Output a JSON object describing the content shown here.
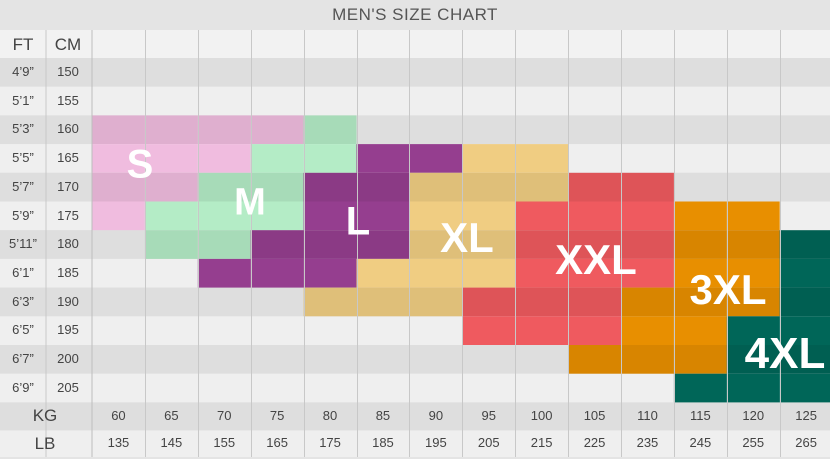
{
  "chart_data": {
    "type": "heatmap",
    "title": "MEN'S SIZE CHART",
    "row_headers": [
      "FT",
      "CM"
    ],
    "col_headers": [
      "KG",
      "LB"
    ],
    "heights_ft": [
      "4’9”",
      "5’1”",
      "5’3”",
      "5’5”",
      "5’7”",
      "5’9”",
      "5’11”",
      "6’1”",
      "6’3”",
      "6’5”",
      "6’7”",
      "6’9”"
    ],
    "heights_cm": [
      "150",
      "155",
      "160",
      "165",
      "170",
      "175",
      "180",
      "185",
      "190",
      "195",
      "200",
      "205"
    ],
    "weights_kg": [
      "60",
      "65",
      "70",
      "75",
      "80",
      "85",
      "90",
      "95",
      "100",
      "105",
      "110",
      "115",
      "120",
      "125"
    ],
    "weights_lb": [
      "135",
      "145",
      "155",
      "165",
      "175",
      "185",
      "195",
      "205",
      "215",
      "225",
      "235",
      "245",
      "255",
      "265"
    ],
    "sizes": [
      {
        "name": "S",
        "color": "#f0bcdf",
        "cells": [
          [
            160,
            60
          ],
          [
            160,
            65
          ],
          [
            160,
            70
          ],
          [
            160,
            75
          ],
          [
            165,
            60
          ],
          [
            165,
            65
          ],
          [
            165,
            70
          ],
          [
            170,
            60
          ],
          [
            170,
            65
          ],
          [
            175,
            60
          ]
        ]
      },
      {
        "name": "M",
        "color": "#b4ecc6",
        "cells": [
          [
            160,
            80
          ],
          [
            165,
            75
          ],
          [
            165,
            80
          ],
          [
            170,
            70
          ],
          [
            170,
            75
          ],
          [
            175,
            65
          ],
          [
            175,
            70
          ],
          [
            175,
            75
          ],
          [
            180,
            65
          ],
          [
            180,
            70
          ]
        ]
      },
      {
        "name": "L",
        "color": "#953e8f",
        "cells": [
          [
            165,
            85
          ],
          [
            165,
            90
          ],
          [
            170,
            80
          ],
          [
            170,
            85
          ],
          [
            175,
            80
          ],
          [
            175,
            85
          ],
          [
            180,
            75
          ],
          [
            180,
            80
          ],
          [
            180,
            85
          ],
          [
            185,
            70
          ],
          [
            185,
            75
          ],
          [
            185,
            80
          ]
        ]
      },
      {
        "name": "XL",
        "color": "#f0cd82",
        "cells": [
          [
            165,
            95
          ],
          [
            165,
            100
          ],
          [
            170,
            90
          ],
          [
            170,
            95
          ],
          [
            170,
            100
          ],
          [
            175,
            90
          ],
          [
            175,
            95
          ],
          [
            180,
            90
          ],
          [
            180,
            95
          ],
          [
            185,
            85
          ],
          [
            185,
            90
          ],
          [
            185,
            95
          ],
          [
            190,
            80
          ],
          [
            190,
            85
          ],
          [
            190,
            90
          ]
        ]
      },
      {
        "name": "XXL",
        "color": "#ef5a5f",
        "cells": [
          [
            170,
            105
          ],
          [
            170,
            110
          ],
          [
            175,
            100
          ],
          [
            175,
            105
          ],
          [
            175,
            110
          ],
          [
            180,
            100
          ],
          [
            180,
            105
          ],
          [
            180,
            110
          ],
          [
            185,
            100
          ],
          [
            185,
            105
          ],
          [
            185,
            110
          ],
          [
            190,
            95
          ],
          [
            190,
            100
          ],
          [
            190,
            105
          ],
          [
            195,
            95
          ],
          [
            195,
            100
          ],
          [
            195,
            105
          ]
        ]
      },
      {
        "name": "3XL",
        "color": "#e88f00",
        "cells": [
          [
            175,
            115
          ],
          [
            175,
            120
          ],
          [
            180,
            115
          ],
          [
            180,
            120
          ],
          [
            185,
            115
          ],
          [
            185,
            120
          ],
          [
            190,
            110
          ],
          [
            190,
            115
          ],
          [
            190,
            120
          ],
          [
            195,
            110
          ],
          [
            195,
            115
          ],
          [
            200,
            105
          ],
          [
            200,
            110
          ],
          [
            200,
            115
          ]
        ]
      },
      {
        "name": "4XL",
        "color": "#006658",
        "cells": [
          [
            180,
            125
          ],
          [
            185,
            125
          ],
          [
            190,
            125
          ],
          [
            195,
            120
          ],
          [
            195,
            125
          ],
          [
            200,
            120
          ],
          [
            200,
            125
          ],
          [
            205,
            115
          ],
          [
            205,
            120
          ],
          [
            205,
            125
          ]
        ]
      }
    ]
  }
}
